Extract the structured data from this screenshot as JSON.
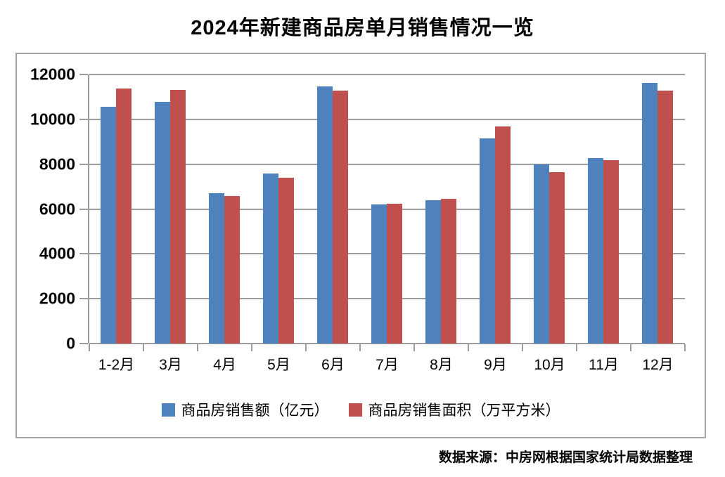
{
  "title": "2024年新建商品房单月销售情况一览",
  "source_note": "数据来源：中房网根据国家统计局数据整理",
  "chart_data": {
    "type": "bar",
    "title": "2024年新建商品房单月销售情况一览",
    "categories": [
      "1-2月",
      "3月",
      "4月",
      "5月",
      "6月",
      "7月",
      "8月",
      "9月",
      "10月",
      "11月",
      "12月"
    ],
    "series": [
      {
        "name": "商品房销售额（亿元）",
        "color": "#4F81BD",
        "values": [
          10566,
          10789,
          6712,
          7598,
          11468,
          6197,
          6393,
          9157,
          7975,
          8270,
          11625
        ]
      },
      {
        "name": "商品房销售面积（万平方米）",
        "color": "#C0504D",
        "values": [
          11369,
          11299,
          6584,
          7390,
          11274,
          6233,
          6453,
          9682,
          7646,
          8188,
          11267
        ]
      }
    ],
    "xlabel": "",
    "ylabel": "",
    "ylim": [
      0,
      12000
    ],
    "ytick_step": 2000,
    "grid": true,
    "legend_position": "bottom",
    "colors": {
      "gridline": "#9C9C9C",
      "frame_border": "#A3A3A3",
      "text": "#000000",
      "background": "#FFFFFF"
    }
  }
}
